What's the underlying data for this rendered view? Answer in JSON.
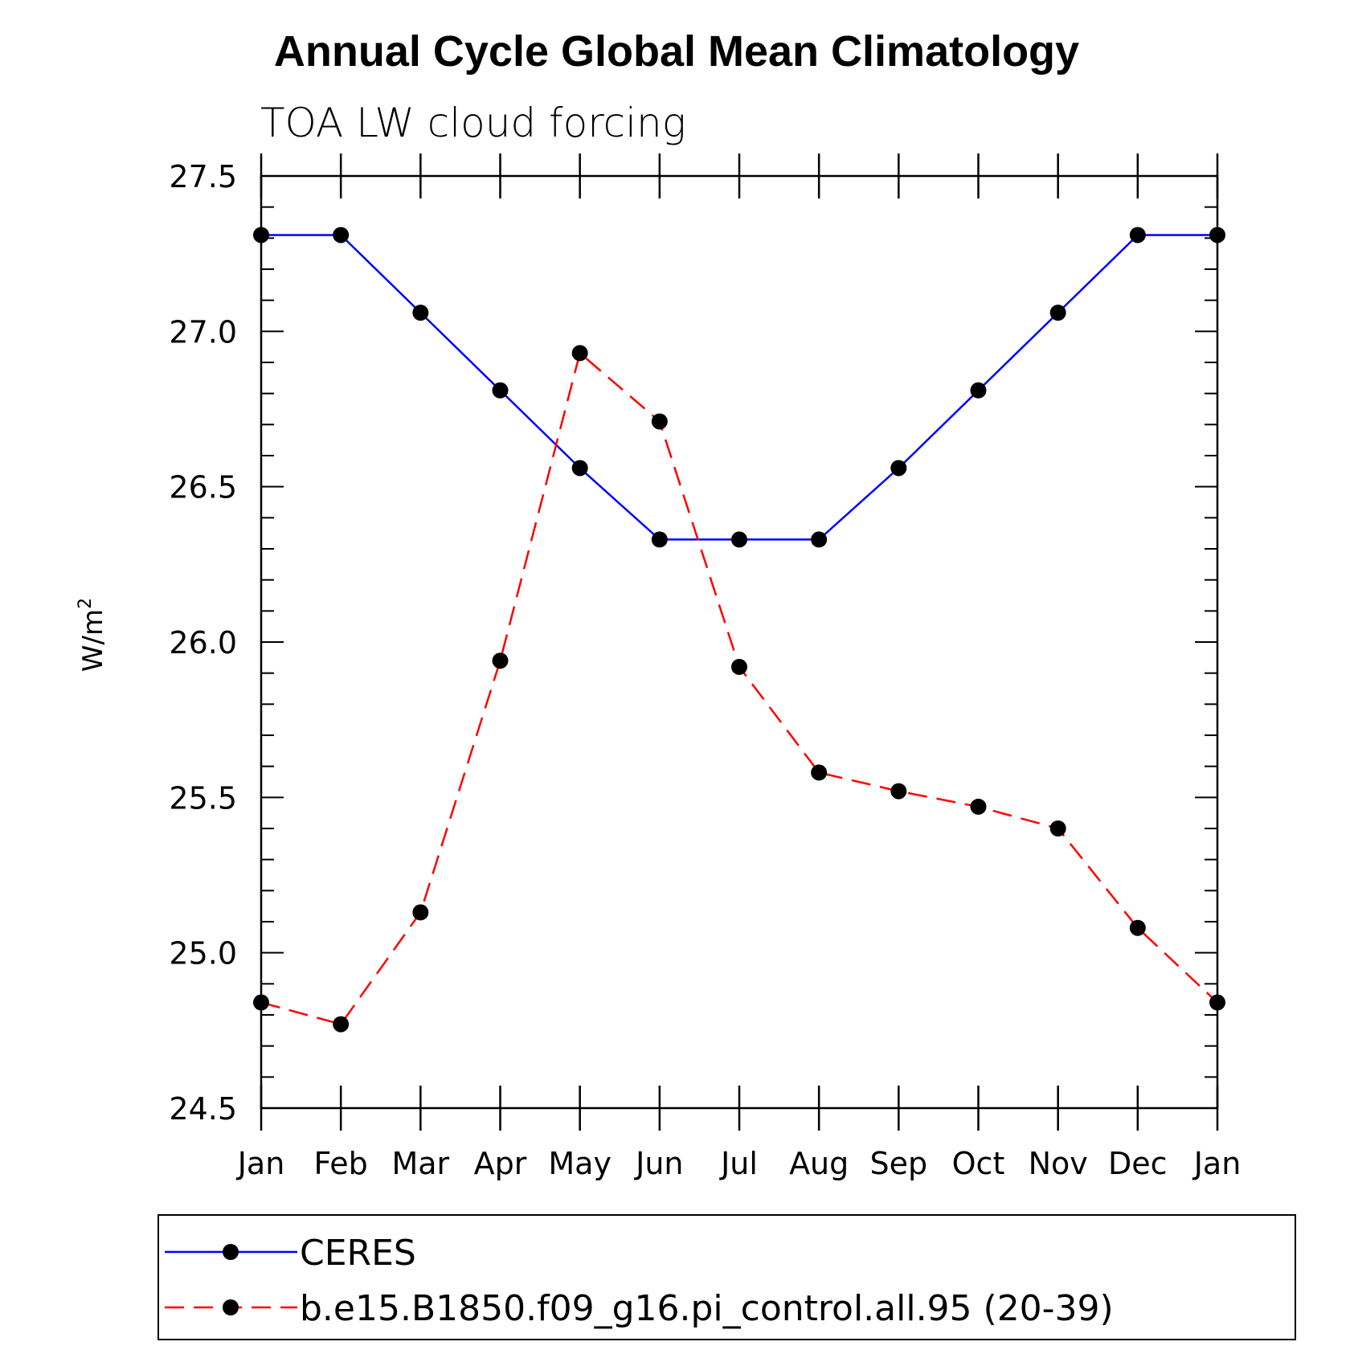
{
  "chart_data": {
    "type": "line",
    "title": "Annual Cycle Global Mean Climatology",
    "subtitle": "TOA LW cloud forcing",
    "ylabel_base": "W/m",
    "ylabel_sup": "2",
    "xlabel": "",
    "categories": [
      "Jan",
      "Feb",
      "Mar",
      "Apr",
      "May",
      "Jun",
      "Jul",
      "Aug",
      "Sep",
      "Oct",
      "Nov",
      "Dec",
      "Jan"
    ],
    "ylim": [
      24.5,
      27.5
    ],
    "yticks": [
      24.5,
      25.0,
      25.5,
      26.0,
      26.5,
      27.0,
      27.5
    ],
    "ytick_labels": [
      "24.5",
      "25.0",
      "25.5",
      "26.0",
      "26.5",
      "27.0",
      "27.5"
    ],
    "grid": false,
    "legend_position": "bottom",
    "series": [
      {
        "name": "CERES",
        "color": "#0000ff",
        "dashed": false,
        "values": [
          27.31,
          27.31,
          27.06,
          26.81,
          26.56,
          26.33,
          26.33,
          26.33,
          26.56,
          26.81,
          27.06,
          27.31,
          27.31
        ]
      },
      {
        "name": "b.e15.B1850.f09_g16.pi_control.all.95 (20-39)",
        "color": "#ff0000",
        "dashed": true,
        "values": [
          24.84,
          24.77,
          25.13,
          25.94,
          26.93,
          26.71,
          25.92,
          25.58,
          25.52,
          25.47,
          25.4,
          25.08,
          24.84
        ]
      }
    ]
  }
}
